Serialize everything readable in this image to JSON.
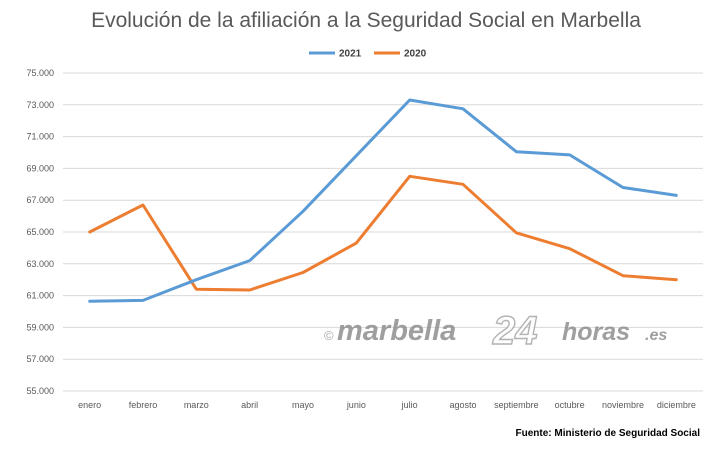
{
  "chart_data": {
    "type": "line",
    "title": "Evolución de la afiliación a la Seguridad Social en Marbella",
    "xlabel": "",
    "ylabel": "",
    "categories": [
      "enero",
      "febrero",
      "marzo",
      "abril",
      "mayo",
      "junio",
      "julio",
      "agosto",
      "septiembre",
      "octubre",
      "noviembre",
      "diciembre"
    ],
    "ylim": [
      55000,
      75000
    ],
    "yticks": [
      55000,
      57000,
      59000,
      61000,
      63000,
      65000,
      67000,
      69000,
      71000,
      73000,
      75000
    ],
    "ytick_labels": [
      "55.000",
      "57.000",
      "59.000",
      "61.000",
      "63.000",
      "65.000",
      "67.000",
      "69.000",
      "71.000",
      "73.000",
      "75.000"
    ],
    "grid": true,
    "legend_position": "top-center",
    "series": [
      {
        "name": "2021",
        "color": "#5b9bd5",
        "values": [
          60650,
          60700,
          62000,
          63200,
          66300,
          69800,
          73300,
          72750,
          70050,
          69850,
          67800,
          67300
        ]
      },
      {
        "name": "2020",
        "color": "#ed7d31",
        "values": [
          65000,
          66700,
          61400,
          61350,
          62450,
          64300,
          68500,
          68000,
          64950,
          63950,
          62250,
          62000
        ]
      }
    ]
  },
  "watermark": {
    "copyright": "©",
    "part1": "marbella",
    "part2": "24",
    "part3": "horas",
    "part4": ".es"
  },
  "source_note": "Fuente: Ministerio de Seguridad Social"
}
